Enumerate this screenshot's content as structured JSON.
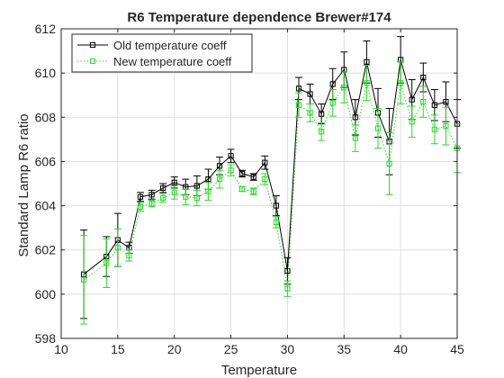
{
  "chart_data": {
    "type": "line",
    "title": "R6 Temperature dependence Brewer#174",
    "xlabel": "Temperature",
    "ylabel": "Standard Lamp R6 ratio",
    "xlim": [
      10,
      45
    ],
    "ylim": [
      598,
      612
    ],
    "xticks": [
      10,
      15,
      20,
      25,
      30,
      35,
      40,
      45
    ],
    "yticks": [
      598,
      600,
      602,
      604,
      606,
      608,
      610,
      612
    ],
    "grid": true,
    "legend_position": "top-left",
    "series": [
      {
        "name": "Old temperature coeff",
        "color": "#000000",
        "line_style": "solid",
        "marker": "square",
        "x": [
          12,
          14,
          15,
          16,
          17,
          18,
          19,
          20,
          21,
          22,
          23,
          24,
          25,
          26,
          27,
          28,
          29,
          30,
          31,
          32,
          33,
          34,
          35,
          36,
          37,
          38,
          39,
          40,
          41,
          42,
          43,
          44,
          45
        ],
        "y": [
          600.9,
          601.7,
          602.45,
          602.1,
          604.4,
          604.5,
          604.8,
          605.05,
          604.85,
          604.9,
          605.2,
          605.8,
          606.25,
          605.45,
          605.3,
          605.95,
          604.0,
          601.05,
          609.3,
          609.05,
          608.15,
          609.5,
          610.15,
          608.0,
          610.5,
          608.2,
          606.9,
          610.6,
          608.8,
          609.8,
          608.55,
          608.7,
          607.7
        ],
        "err": [
          2.0,
          0.9,
          1.2,
          0.25,
          0.2,
          0.2,
          0.2,
          0.25,
          0.35,
          0.45,
          0.45,
          0.4,
          0.3,
          0.15,
          0.15,
          0.3,
          0.45,
          0.6,
          0.5,
          0.45,
          0.45,
          0.7,
          0.8,
          0.8,
          0.95,
          1.1,
          1.5,
          1.05,
          0.9,
          0.65,
          0.7,
          0.9,
          1.1
        ]
      },
      {
        "name": "New temperature coeff",
        "color": "#22dd22",
        "line_style": "dotted",
        "marker": "square",
        "x": [
          12,
          14,
          15,
          16,
          17,
          18,
          19,
          20,
          21,
          22,
          23,
          24,
          25,
          26,
          27,
          28,
          29,
          30,
          31,
          32,
          33,
          34,
          35,
          36,
          37,
          38,
          39,
          40,
          41,
          42,
          43,
          44,
          45
        ],
        "y": [
          600.65,
          601.4,
          602.1,
          601.75,
          603.95,
          604.1,
          604.35,
          604.6,
          604.4,
          604.35,
          604.65,
          605.2,
          605.6,
          604.75,
          604.65,
          605.2,
          603.25,
          600.25,
          608.55,
          608.2,
          607.35,
          608.65,
          609.35,
          607.05,
          609.55,
          607.5,
          605.9,
          609.55,
          607.8,
          608.7,
          607.45,
          607.6,
          606.6
        ],
        "err": [
          2.0,
          1.1,
          0.85,
          0.25,
          0.2,
          0.15,
          0.2,
          0.3,
          0.35,
          0.35,
          0.4,
          0.4,
          0.25,
          0.1,
          0.15,
          0.25,
          0.25,
          0.35,
          0.55,
          0.4,
          0.4,
          0.6,
          0.7,
          0.6,
          0.8,
          0.9,
          1.4,
          0.95,
          0.7,
          0.7,
          0.65,
          0.85,
          1.1
        ]
      }
    ]
  }
}
